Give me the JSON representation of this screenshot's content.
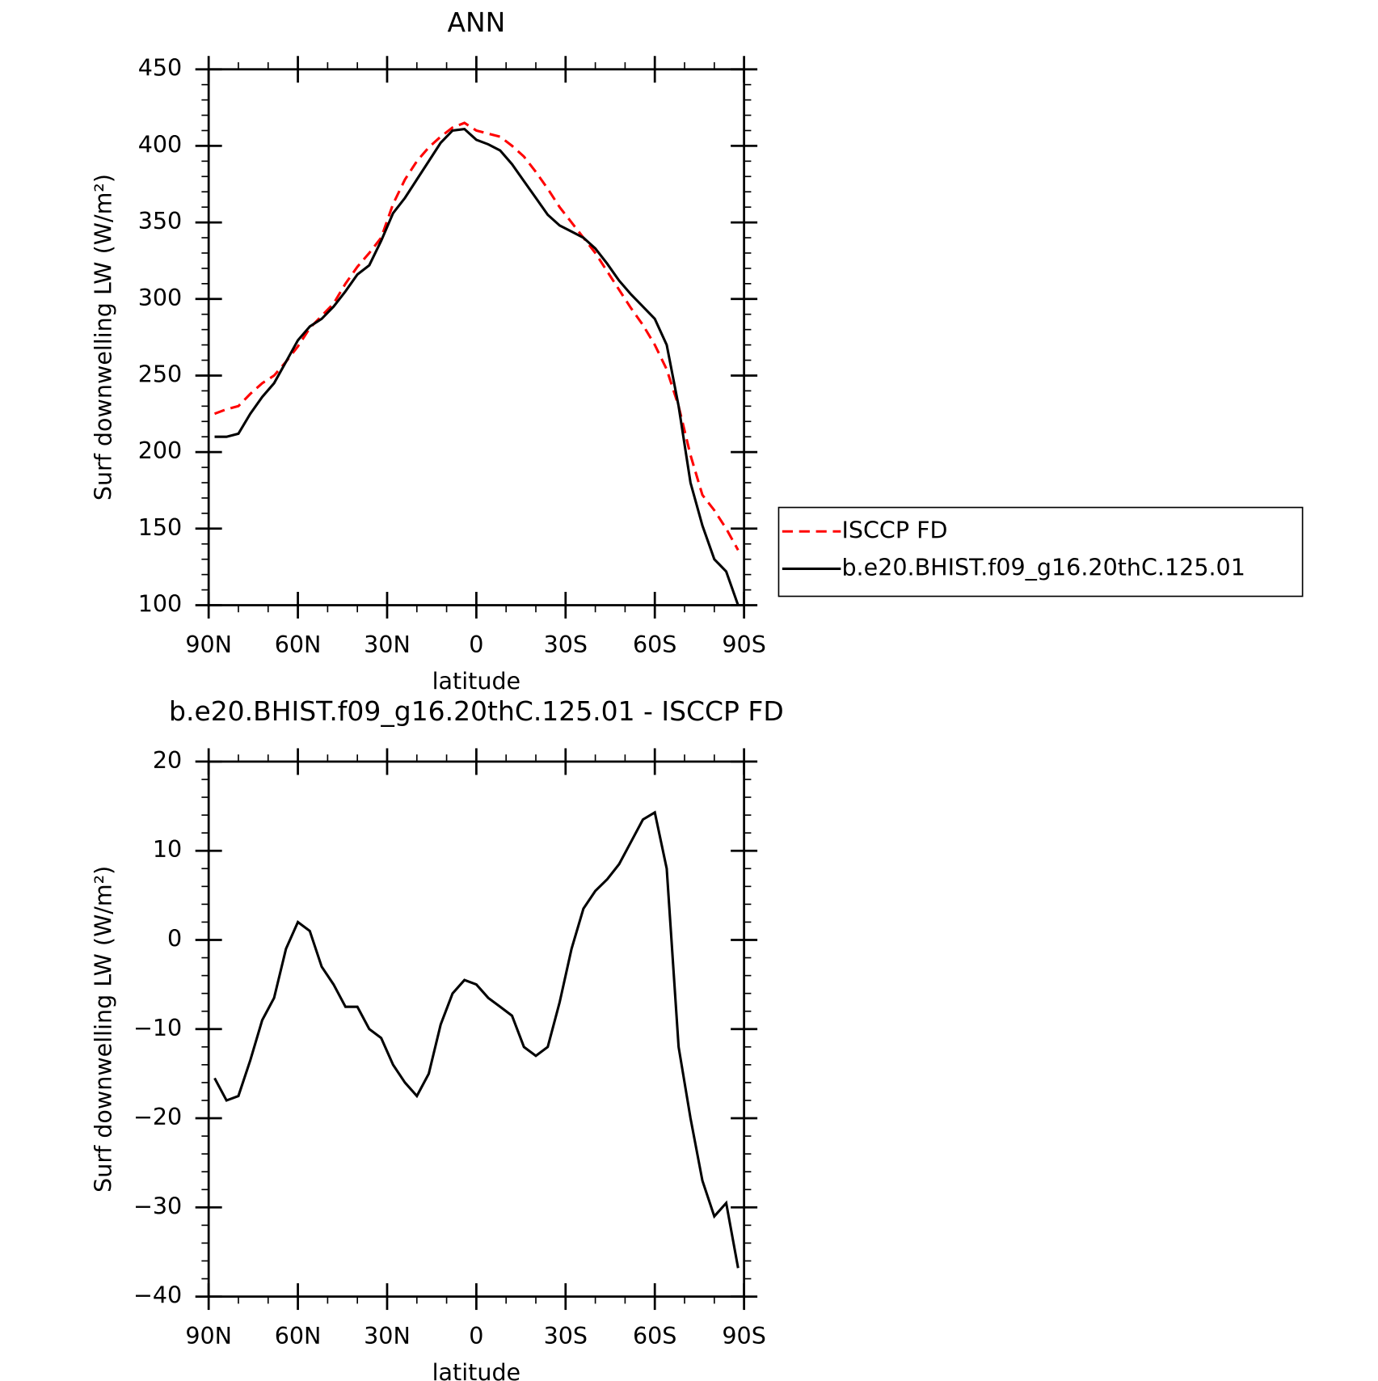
{
  "chart_data": [
    {
      "type": "line",
      "title": "ANN",
      "xlabel": "latitude",
      "ylabel": "Surf downwelling LW (W/m²)",
      "x": [
        88,
        84,
        80,
        76,
        72,
        68,
        64,
        60,
        56,
        52,
        48,
        44,
        40,
        36,
        32,
        28,
        24,
        20,
        16,
        12,
        8,
        4,
        0,
        -4,
        -8,
        -12,
        -16,
        -20,
        -24,
        -28,
        -32,
        -36,
        -40,
        -44,
        -48,
        -52,
        -56,
        -60,
        -64,
        -68,
        -72,
        -76,
        -80,
        -84,
        -88
      ],
      "xlim": [
        90,
        -90
      ],
      "xticks": [
        {
          "value": 90,
          "label": "90N"
        },
        {
          "value": 60,
          "label": "60N"
        },
        {
          "value": 30,
          "label": "30N"
        },
        0,
        {
          "value": -30,
          "label": "30S"
        },
        {
          "value": -60,
          "label": "60S"
        },
        {
          "value": -90,
          "label": "90S"
        }
      ],
      "ylim": [
        100,
        450
      ],
      "yticks": [
        100,
        150,
        200,
        250,
        300,
        350,
        400,
        450
      ],
      "legend": "right",
      "series": [
        {
          "name": "ISCCP FD",
          "color": "#ff0000",
          "dash": "dashed",
          "values": [
            225,
            228,
            230,
            238,
            245,
            250,
            259,
            269,
            281,
            289,
            297,
            310,
            321,
            330,
            340,
            362,
            378,
            390,
            399,
            406,
            412,
            415,
            410,
            408,
            406,
            400,
            393,
            383,
            372,
            360,
            350,
            340,
            330,
            318,
            306,
            294,
            283,
            270,
            254,
            230,
            198,
            172,
            162,
            150,
            136
          ]
        },
        {
          "name": "b.e20.BHIST.f09_g16.20thC.125.01",
          "color": "#000000",
          "dash": "solid",
          "values": [
            210,
            210,
            212,
            225,
            236,
            245,
            259,
            273,
            282,
            287,
            295,
            305,
            316,
            322,
            338,
            356,
            366,
            378,
            390,
            402,
            410,
            411,
            404,
            401,
            397,
            388,
            377,
            366,
            355,
            348,
            344,
            340,
            333,
            323,
            312,
            303,
            295,
            287,
            270,
            230,
            180,
            152,
            130,
            122,
            100
          ]
        }
      ]
    },
    {
      "type": "line",
      "title": "b.e20.BHIST.f09_g16.20thC.125.01 - ISCCP FD",
      "xlabel": "latitude",
      "ylabel": "Surf downwelling LW (W/m²)",
      "x": [
        88,
        84,
        80,
        76,
        72,
        68,
        64,
        60,
        56,
        52,
        48,
        44,
        40,
        36,
        32,
        28,
        24,
        20,
        16,
        12,
        8,
        4,
        0,
        -4,
        -8,
        -12,
        -16,
        -20,
        -24,
        -28,
        -32,
        -36,
        -40,
        -44,
        -48,
        -52,
        -56,
        -60,
        -64,
        -68,
        -72,
        -76,
        -80,
        -84,
        -88
      ],
      "xlim": [
        90,
        -90
      ],
      "xticks": [
        {
          "value": 90,
          "label": "90N"
        },
        {
          "value": 60,
          "label": "60N"
        },
        {
          "value": 30,
          "label": "30N"
        },
        0,
        {
          "value": -30,
          "label": "30S"
        },
        {
          "value": -60,
          "label": "60S"
        },
        {
          "value": -90,
          "label": "90S"
        }
      ],
      "ylim": [
        -40,
        20
      ],
      "yticks": [
        {
          "value": -40,
          "label": "−40"
        },
        {
          "value": -30,
          "label": "−30"
        },
        {
          "value": -20,
          "label": "−20"
        },
        {
          "value": -10,
          "label": "−10"
        },
        0,
        10,
        20
      ],
      "series": [
        {
          "color": "#000000",
          "dash": "solid",
          "values": [
            -15.5,
            -18,
            -17.5,
            -13.5,
            -9,
            -6.5,
            -1,
            2,
            1,
            -3,
            -5,
            -7.5,
            -7.5,
            -10,
            -11,
            -14,
            -16,
            -17.5,
            -15,
            -9.5,
            -6,
            -4.5,
            -5,
            -6.5,
            -7.5,
            -8.5,
            -12,
            -13,
            -12,
            -7,
            -1,
            3.5,
            5.5,
            6.8,
            8.5,
            11,
            13.5,
            14.3,
            8,
            -12,
            -20,
            -27,
            -31,
            -29.5,
            -36.8
          ]
        }
      ]
    }
  ]
}
